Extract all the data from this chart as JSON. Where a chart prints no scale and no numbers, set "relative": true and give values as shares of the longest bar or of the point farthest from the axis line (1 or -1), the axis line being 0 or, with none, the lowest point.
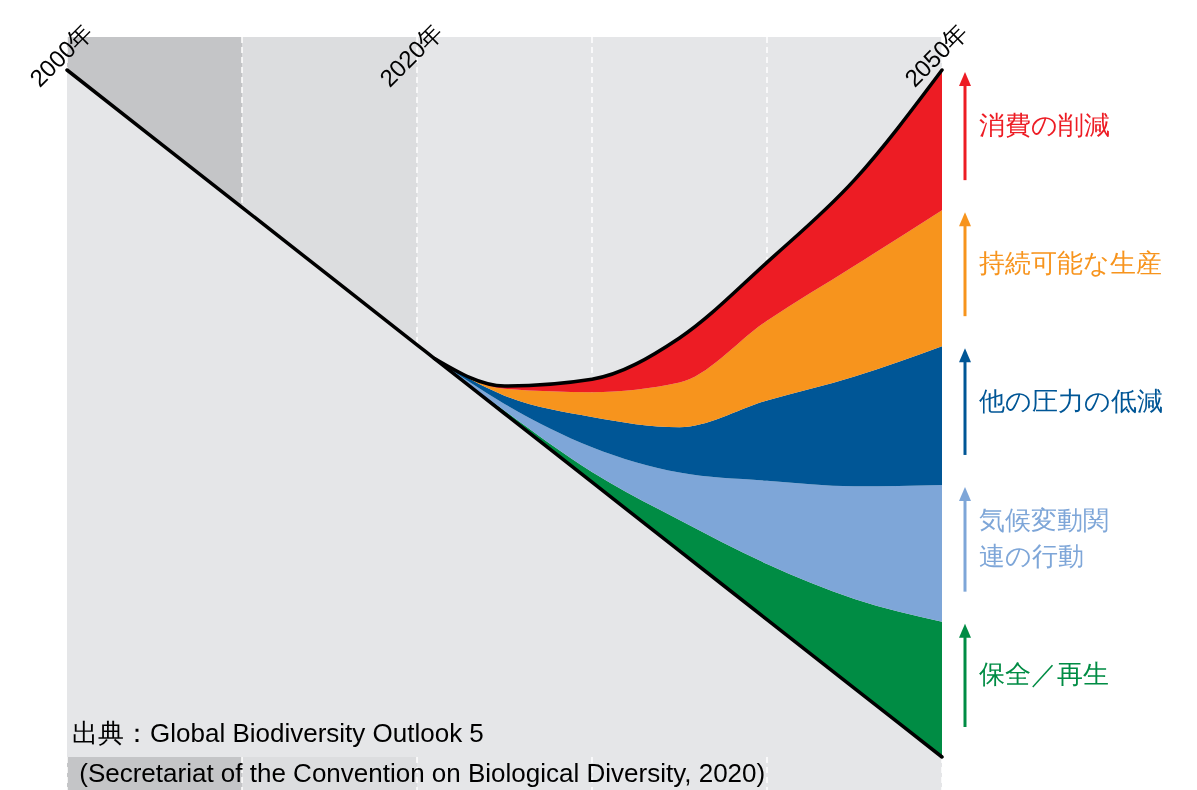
{
  "chart_data": {
    "type": "area",
    "relative": true,
    "stacked": true,
    "legend": "right",
    "grid": "x",
    "x": [
      2000,
      2010,
      2020,
      2021,
      2025,
      2030,
      2035,
      2040,
      2045,
      2050
    ],
    "xlim": [
      2000,
      2050
    ],
    "xticks": [
      {
        "value": 2000,
        "label": "2000年"
      },
      {
        "value": 2010,
        "label": null
      },
      {
        "value": 2020,
        "label": "2020年"
      },
      {
        "value": 2030,
        "label": null
      },
      {
        "value": 2040,
        "label": null
      },
      {
        "value": 2050,
        "label": "2050年"
      }
    ],
    "bands": [
      {
        "axis": "x",
        "from": 2000,
        "to": 2010,
        "color": "#c4c5c7"
      },
      {
        "axis": "x",
        "from": 2010,
        "to": 2020,
        "color": "#dcdddf"
      },
      {
        "axis": "x",
        "from": 2020,
        "to": 2050,
        "color": "#e5e6e8"
      }
    ],
    "series": [
      {
        "color": "#e5e6e8",
        "values": [
          1,
          0.8,
          0.6,
          0.58,
          0.5,
          0.4,
          0.3,
          0.2,
          0.1,
          0
        ]
      },
      {
        "name": "保全／再生",
        "color": "#008c44",
        "values": [
          null,
          null,
          null,
          0,
          0.004,
          0.015,
          0.045,
          0.081,
          0.13,
          0.197
        ]
      },
      {
        "name": "気候変動関連の行動",
        "color": "#7ea6d8",
        "values": [
          null,
          null,
          null,
          0,
          0.01,
          0.036,
          0.069,
          0.121,
          0.164,
          0.199
        ]
      },
      {
        "name": "他の圧力の低減",
        "color": "#005696",
        "values": [
          null,
          null,
          null,
          0,
          0.012,
          0.044,
          0.066,
          0.117,
          0.16,
          0.202
        ]
      },
      {
        "name": "持続可能な生産",
        "color": "#f7941d",
        "values": [
          null,
          null,
          null,
          0,
          0.01,
          0.036,
          0.065,
          0.116,
          0.161,
          0.198
        ]
      },
      {
        "name": "消費の削減",
        "color": "#ed1c24",
        "values": [
          null,
          null,
          null,
          0,
          0.004,
          0.019,
          0.065,
          0.085,
          0.125,
          0.204
        ]
      }
    ],
    "annotations": [
      "出典：Global Biodiversity Outlook 5",
      " (Secretariat of the Convention on Biological Diversity, 2020)"
    ]
  }
}
